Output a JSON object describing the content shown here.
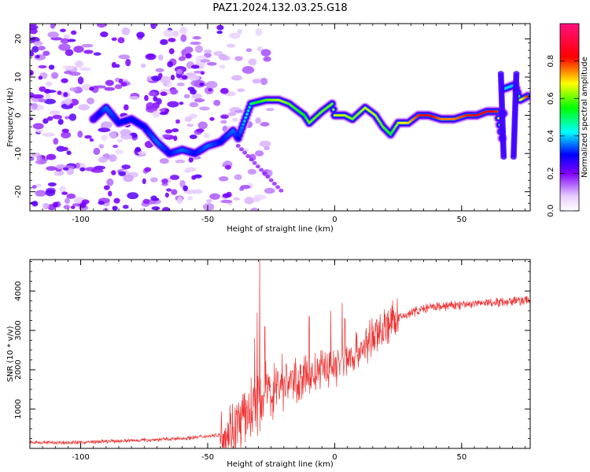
{
  "title": "PAZ1.2024.132.03.25.G18",
  "chart_data": [
    {
      "type": "heatmap",
      "xlabel": "Height of straight line (km)",
      "ylabel": "Frequency (Hz)",
      "xlim": [
        -120,
        77
      ],
      "ylim": [
        -25,
        24
      ],
      "x_ticks": [
        -100,
        -50,
        0,
        50
      ],
      "y_ticks": [
        -20,
        -10,
        0,
        10,
        20
      ],
      "colorbar": {
        "label": "Normalized spectral amplitude",
        "range": [
          0.0,
          1.0
        ],
        "ticks": [
          0.0,
          0.2,
          0.4,
          0.6,
          0.8
        ],
        "tick_labels": [
          "0.0",
          "0.2",
          "0.4",
          "0.6",
          "0.8"
        ],
        "colormap": "white-violet-blue-cyan-green-yellow-red-pink"
      },
      "ridge": [
        {
          "x": -95,
          "y": -1,
          "a": 0.25
        },
        {
          "x": -90,
          "y": 2,
          "a": 0.35
        },
        {
          "x": -85,
          "y": -2,
          "a": 0.3
        },
        {
          "x": -80,
          "y": -1,
          "a": 0.3
        },
        {
          "x": -75,
          "y": -3,
          "a": 0.3
        },
        {
          "x": -70,
          "y": -7,
          "a": 0.35
        },
        {
          "x": -65,
          "y": -10,
          "a": 0.3
        },
        {
          "x": -60,
          "y": -9,
          "a": 0.35
        },
        {
          "x": -55,
          "y": -10,
          "a": 0.3
        },
        {
          "x": -50,
          "y": -8,
          "a": 0.35
        },
        {
          "x": -45,
          "y": -7,
          "a": 0.3
        },
        {
          "x": -40,
          "y": -4,
          "a": 0.35
        },
        {
          "x": -38,
          "y": -6,
          "a": 0.3
        },
        {
          "x": -33,
          "y": 3,
          "a": 0.5
        },
        {
          "x": -27,
          "y": 4,
          "a": 0.6
        },
        {
          "x": -22,
          "y": 4,
          "a": 0.65
        },
        {
          "x": -18,
          "y": 3,
          "a": 0.6
        },
        {
          "x": -12,
          "y": 0,
          "a": 0.55
        },
        {
          "x": -10,
          "y": -2,
          "a": 0.6
        },
        {
          "x": -5,
          "y": 1,
          "a": 0.6
        },
        {
          "x": -1,
          "y": 3,
          "a": 0.6
        },
        {
          "x": 0,
          "y": 0,
          "a": 0.65
        },
        {
          "x": 4,
          "y": 0,
          "a": 0.65
        },
        {
          "x": 7,
          "y": -1,
          "a": 0.6
        },
        {
          "x": 12,
          "y": 2,
          "a": 0.65
        },
        {
          "x": 16,
          "y": 0,
          "a": 0.65
        },
        {
          "x": 19,
          "y": -3,
          "a": 0.6
        },
        {
          "x": 22,
          "y": -5,
          "a": 0.55
        },
        {
          "x": 25,
          "y": -2,
          "a": 0.65
        },
        {
          "x": 29,
          "y": -2,
          "a": 0.7
        },
        {
          "x": 33,
          "y": 0,
          "a": 0.8
        },
        {
          "x": 37,
          "y": 0,
          "a": 0.85
        },
        {
          "x": 42,
          "y": -1,
          "a": 0.75
        },
        {
          "x": 47,
          "y": -1,
          "a": 0.75
        },
        {
          "x": 52,
          "y": 0,
          "a": 0.8
        },
        {
          "x": 56,
          "y": 0,
          "a": 0.82
        },
        {
          "x": 60,
          "y": 1,
          "a": 0.85
        },
        {
          "x": 64,
          "y": 1,
          "a": 0.8
        },
        {
          "x": 66,
          "y": -6,
          "a": 0.4
        },
        {
          "x": 67,
          "y": 7,
          "a": 0.4
        },
        {
          "x": 71,
          "y": 8,
          "a": 0.4
        },
        {
          "x": 73,
          "y": 4,
          "a": 0.65
        },
        {
          "x": 76,
          "y": 5,
          "a": 0.8
        }
      ]
    },
    {
      "type": "line",
      "xlabel": "Height of straight line (km)",
      "ylabel": "SNR (10 * v/v)",
      "xlim": [
        -120,
        77
      ],
      "ylim": [
        0,
        4800
      ],
      "x_ticks": [
        -100,
        -50,
        0,
        50
      ],
      "y_ticks": [
        1000,
        2000,
        3000,
        4000
      ],
      "color": "#ee3333",
      "trend": {
        "x": [
          -120,
          -100,
          -80,
          -60,
          -45,
          -40,
          -35,
          -30,
          -25,
          -20,
          -15,
          -10,
          -5,
          0,
          5,
          10,
          15,
          20,
          25,
          30,
          35,
          40,
          50,
          60,
          70,
          77
        ],
        "y": [
          150,
          150,
          200,
          250,
          350,
          500,
          800,
          1200,
          1500,
          1700,
          1750,
          1800,
          2000,
          2100,
          2300,
          2500,
          2800,
          3100,
          3300,
          3450,
          3550,
          3600,
          3650,
          3700,
          3750,
          3760
        ]
      },
      "peaks": [
        {
          "x": -29.5,
          "y": 4850
        },
        {
          "x": -30.5,
          "y": 3450
        },
        {
          "x": -27.5,
          "y": 3100
        },
        {
          "x": -31.5,
          "y": 2800
        },
        {
          "x": -1.5,
          "y": 3500
        },
        {
          "x": 3,
          "y": 3700
        },
        {
          "x": -10,
          "y": 3350
        },
        {
          "x": 4,
          "y": 3300
        }
      ]
    }
  ]
}
